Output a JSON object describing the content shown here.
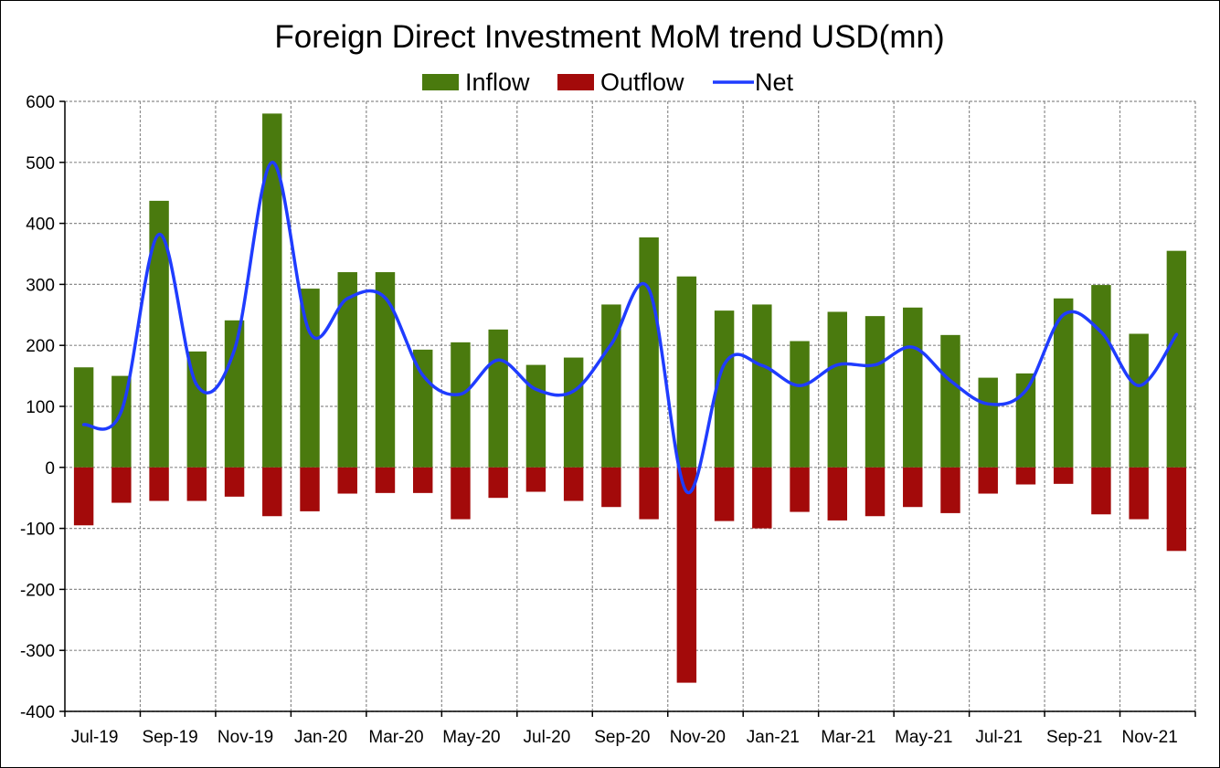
{
  "chart_data": {
    "type": "bar",
    "title": "Foreign Direct Investment MoM trend USD(mn)",
    "xlabel": "",
    "ylabel": "",
    "ylim": [
      -400,
      600
    ],
    "yticks": [
      600,
      500,
      400,
      300,
      200,
      100,
      0,
      -100,
      -200,
      -300,
      -400
    ],
    "grid": true,
    "legend_position": "top-center",
    "x": [
      "Jul-19",
      "Aug-19",
      "Sep-19",
      "Oct-19",
      "Nov-19",
      "Dec-19",
      "Jan-20",
      "Feb-20",
      "Mar-20",
      "Apr-20",
      "May-20",
      "Jun-20",
      "Jul-20",
      "Aug-20",
      "Sep-20",
      "Oct-20",
      "Nov-20",
      "Dec-20",
      "Jan-21",
      "Feb-21",
      "Mar-21",
      "Apr-21",
      "May-21",
      "Jun-21",
      "Jul-21",
      "Aug-21",
      "Sep-21",
      "Oct-21",
      "Nov-21",
      "Dec-21"
    ],
    "x_tick_labels": [
      "Jul-19",
      "Sep-19",
      "Nov-19",
      "Jan-20",
      "Mar-20",
      "May-20",
      "Jul-20",
      "Sep-20",
      "Nov-20",
      "Jan-21",
      "Mar-21",
      "May-21",
      "Jul-21",
      "Sep-21",
      "Nov-21"
    ],
    "series": [
      {
        "name": "Inflow",
        "kind": "bar",
        "color": "#4a7a0e",
        "values": [
          164,
          150,
          437,
          190,
          241,
          580,
          293,
          320,
          320,
          193,
          205,
          226,
          168,
          180,
          267,
          377,
          313,
          257,
          267,
          207,
          255,
          248,
          262,
          217,
          147,
          154,
          277,
          299,
          219,
          355
        ]
      },
      {
        "name": "Outflow",
        "kind": "bar",
        "color": "#a30a0a",
        "values": [
          -95,
          -58,
          -55,
          -55,
          -48,
          -80,
          -72,
          -43,
          -42,
          -42,
          -85,
          -50,
          -40,
          -55,
          -65,
          -85,
          -353,
          -88,
          -100,
          -73,
          -87,
          -80,
          -65,
          -75,
          -43,
          -28,
          -27,
          -77,
          -85,
          -137
        ]
      },
      {
        "name": "Net",
        "kind": "line",
        "color": "#1f3cff",
        "values": [
          70,
          92,
          382,
          135,
          193,
          500,
          221,
          277,
          278,
          151,
          120,
          176,
          128,
          125,
          202,
          292,
          -40,
          169,
          167,
          134,
          168,
          168,
          197,
          142,
          104,
          126,
          250,
          222,
          134,
          218
        ]
      }
    ]
  }
}
